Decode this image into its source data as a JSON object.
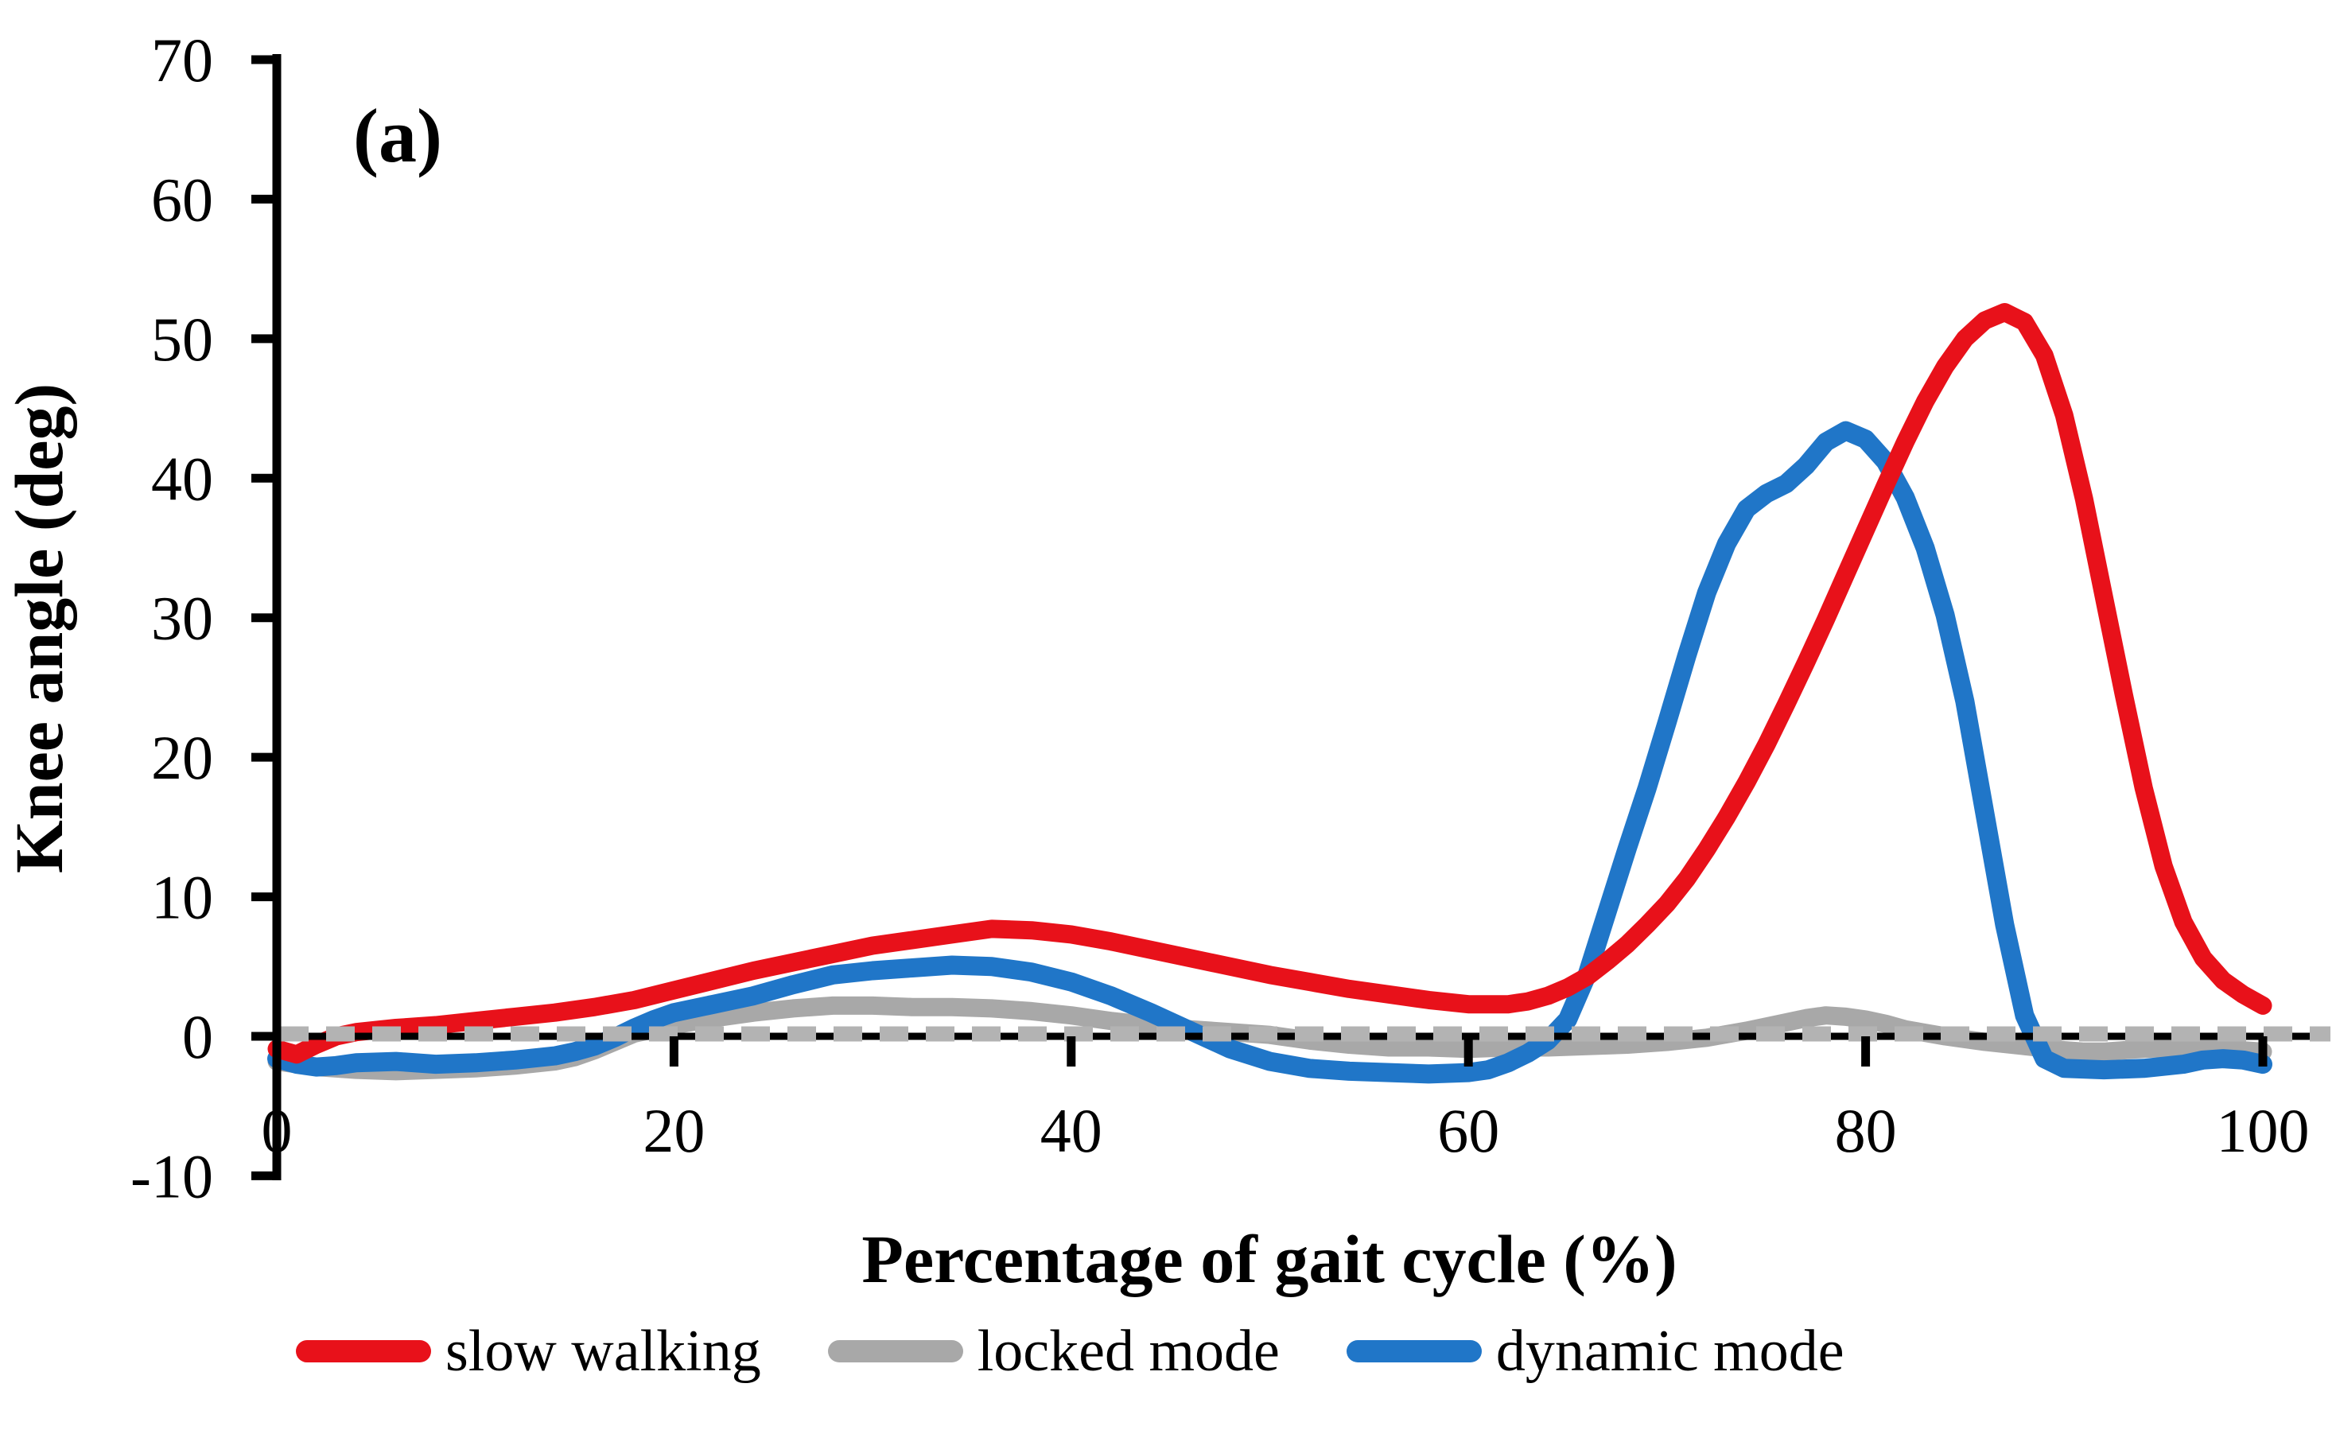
{
  "panel_label": "(a)",
  "y_axis": {
    "title": "Knee angle (deg)",
    "tick_values": [
      70,
      60,
      50,
      40,
      30,
      20,
      10,
      0,
      -10
    ],
    "min": -10,
    "max": 70
  },
  "x_axis": {
    "title": "Percentage of gait cycle (%)",
    "tick_values": [
      0,
      20,
      40,
      60,
      80,
      100
    ],
    "min": 0,
    "max": 100
  },
  "colors": {
    "slow_walking": "#e8111a",
    "locked_mode": "#a8a8a8",
    "dynamic_mode": "#2076c8",
    "zero_line": "#000000",
    "zero_dash": "#b3b3b3",
    "axis": "#000000"
  },
  "legend": [
    {
      "label": "slow walking",
      "color": "#e8111a"
    },
    {
      "label": "locked mode",
      "color": "#a8a8a8"
    },
    {
      "label": "dynamic mode",
      "color": "#2076c8"
    }
  ],
  "chart_data": {
    "type": "line",
    "title": "",
    "xlabel": "Percentage of gait cycle (%)",
    "ylabel": "Knee angle (deg)",
    "xlim": [
      0,
      100
    ],
    "ylim": [
      -10,
      70
    ],
    "x_ticks": [
      0,
      20,
      40,
      60,
      80,
      100
    ],
    "y_ticks": [
      -10,
      0,
      10,
      20,
      30,
      40,
      50,
      60,
      70
    ],
    "grid": false,
    "legend_position": "bottom",
    "zero_reference_line": true,
    "series": [
      {
        "name": "locked mode",
        "color": "#a8a8a8",
        "points": [
          [
            0,
            -1.8
          ],
          [
            2,
            -2.2
          ],
          [
            4,
            -2.4
          ],
          [
            6,
            -2.5
          ],
          [
            8,
            -2.4
          ],
          [
            10,
            -2.3
          ],
          [
            12,
            -2.1
          ],
          [
            14,
            -1.8
          ],
          [
            15,
            -1.5
          ],
          [
            16,
            -1.0
          ],
          [
            17,
            -0.4
          ],
          [
            18,
            0.2
          ],
          [
            19,
            0.5
          ],
          [
            20,
            0.8
          ],
          [
            22,
            1.3
          ],
          [
            24,
            1.7
          ],
          [
            26,
            2.0
          ],
          [
            28,
            2.2
          ],
          [
            30,
            2.2
          ],
          [
            32,
            2.1
          ],
          [
            34,
            2.1
          ],
          [
            36,
            2.0
          ],
          [
            38,
            1.8
          ],
          [
            40,
            1.5
          ],
          [
            42,
            1.1
          ],
          [
            44,
            0.8
          ],
          [
            46,
            0.5
          ],
          [
            48,
            0.3
          ],
          [
            50,
            0.1
          ],
          [
            52,
            -0.3
          ],
          [
            54,
            -0.6
          ],
          [
            56,
            -0.8
          ],
          [
            58,
            -0.8
          ],
          [
            60,
            -0.9
          ],
          [
            62,
            -0.8
          ],
          [
            64,
            -0.8
          ],
          [
            66,
            -0.7
          ],
          [
            68,
            -0.6
          ],
          [
            70,
            -0.4
          ],
          [
            72,
            -0.1
          ],
          [
            74,
            0.4
          ],
          [
            76,
            1.0
          ],
          [
            77,
            1.3
          ],
          [
            78,
            1.5
          ],
          [
            79,
            1.4
          ],
          [
            80,
            1.2
          ],
          [
            81,
            0.9
          ],
          [
            82,
            0.5
          ],
          [
            84,
            0.0
          ],
          [
            86,
            -0.4
          ],
          [
            88,
            -0.7
          ],
          [
            90,
            -1.0
          ],
          [
            91,
            -1.1
          ],
          [
            92,
            -1.1
          ],
          [
            93,
            -1.0
          ],
          [
            94,
            -0.9
          ],
          [
            96,
            -0.8
          ],
          [
            98,
            -0.9
          ],
          [
            100,
            -1.1
          ]
        ]
      },
      {
        "name": "dynamic mode",
        "color": "#2076c8",
        "points": [
          [
            0,
            -1.6
          ],
          [
            1,
            -2.0
          ],
          [
            2,
            -2.2
          ],
          [
            3,
            -2.1
          ],
          [
            4,
            -1.9
          ],
          [
            6,
            -1.8
          ],
          [
            8,
            -2.0
          ],
          [
            10,
            -1.9
          ],
          [
            12,
            -1.7
          ],
          [
            14,
            -1.4
          ],
          [
            15,
            -1.1
          ],
          [
            16,
            -0.7
          ],
          [
            17,
            -0.1
          ],
          [
            18,
            0.6
          ],
          [
            19,
            1.2
          ],
          [
            20,
            1.7
          ],
          [
            22,
            2.3
          ],
          [
            24,
            2.9
          ],
          [
            26,
            3.7
          ],
          [
            28,
            4.4
          ],
          [
            30,
            4.7
          ],
          [
            32,
            4.9
          ],
          [
            34,
            5.1
          ],
          [
            36,
            5.0
          ],
          [
            38,
            4.6
          ],
          [
            40,
            3.9
          ],
          [
            42,
            2.9
          ],
          [
            44,
            1.7
          ],
          [
            46,
            0.4
          ],
          [
            48,
            -0.9
          ],
          [
            50,
            -1.8
          ],
          [
            52,
            -2.3
          ],
          [
            54,
            -2.5
          ],
          [
            56,
            -2.6
          ],
          [
            58,
            -2.7
          ],
          [
            60,
            -2.6
          ],
          [
            61,
            -2.4
          ],
          [
            62,
            -1.9
          ],
          [
            63,
            -1.2
          ],
          [
            64,
            -0.3
          ],
          [
            65,
            1.2
          ],
          [
            66,
            4.5
          ],
          [
            67,
            9.0
          ],
          [
            68,
            13.5
          ],
          [
            69,
            17.8
          ],
          [
            70,
            22.5
          ],
          [
            71,
            27.3
          ],
          [
            72,
            31.8
          ],
          [
            73,
            35.3
          ],
          [
            74,
            37.8
          ],
          [
            75,
            38.9
          ],
          [
            76,
            39.6
          ],
          [
            77,
            40.9
          ],
          [
            78,
            42.6
          ],
          [
            79,
            43.4
          ],
          [
            80,
            42.8
          ],
          [
            81,
            41.2
          ],
          [
            82,
            38.6
          ],
          [
            83,
            35.0
          ],
          [
            84,
            30.2
          ],
          [
            85,
            24.0
          ],
          [
            86,
            16.0
          ],
          [
            87,
            8.0
          ],
          [
            88,
            1.5
          ],
          [
            89,
            -1.6
          ],
          [
            90,
            -2.3
          ],
          [
            92,
            -2.4
          ],
          [
            94,
            -2.3
          ],
          [
            96,
            -2.0
          ],
          [
            97,
            -1.7
          ],
          [
            98,
            -1.6
          ],
          [
            99,
            -1.7
          ],
          [
            100,
            -2.0
          ]
        ]
      },
      {
        "name": "slow walking",
        "color": "#e8111a",
        "points": [
          [
            0,
            -0.9
          ],
          [
            1,
            -1.3
          ],
          [
            2,
            -0.6
          ],
          [
            3,
            0.0
          ],
          [
            4,
            0.3
          ],
          [
            6,
            0.6
          ],
          [
            8,
            0.8
          ],
          [
            10,
            1.1
          ],
          [
            12,
            1.4
          ],
          [
            14,
            1.7
          ],
          [
            16,
            2.1
          ],
          [
            18,
            2.6
          ],
          [
            20,
            3.3
          ],
          [
            22,
            4.0
          ],
          [
            24,
            4.7
          ],
          [
            26,
            5.3
          ],
          [
            28,
            5.9
          ],
          [
            30,
            6.5
          ],
          [
            32,
            6.9
          ],
          [
            34,
            7.3
          ],
          [
            36,
            7.7
          ],
          [
            38,
            7.6
          ],
          [
            40,
            7.3
          ],
          [
            42,
            6.8
          ],
          [
            44,
            6.2
          ],
          [
            46,
            5.6
          ],
          [
            48,
            5.0
          ],
          [
            50,
            4.4
          ],
          [
            52,
            3.9
          ],
          [
            54,
            3.4
          ],
          [
            56,
            3.0
          ],
          [
            58,
            2.6
          ],
          [
            60,
            2.3
          ],
          [
            62,
            2.3
          ],
          [
            63,
            2.5
          ],
          [
            64,
            2.9
          ],
          [
            65,
            3.5
          ],
          [
            66,
            4.3
          ],
          [
            67,
            5.4
          ],
          [
            68,
            6.6
          ],
          [
            69,
            8.0
          ],
          [
            70,
            9.5
          ],
          [
            71,
            11.3
          ],
          [
            72,
            13.4
          ],
          [
            73,
            15.7
          ],
          [
            74,
            18.2
          ],
          [
            75,
            20.9
          ],
          [
            76,
            23.8
          ],
          [
            77,
            26.8
          ],
          [
            78,
            29.9
          ],
          [
            79,
            33.1
          ],
          [
            80,
            36.3
          ],
          [
            81,
            39.5
          ],
          [
            82,
            42.6
          ],
          [
            83,
            45.5
          ],
          [
            84,
            48.0
          ],
          [
            85,
            50.0
          ],
          [
            86,
            51.3
          ],
          [
            87,
            51.9
          ],
          [
            88,
            51.2
          ],
          [
            89,
            48.8
          ],
          [
            90,
            44.5
          ],
          [
            91,
            38.5
          ],
          [
            92,
            31.5
          ],
          [
            93,
            24.5
          ],
          [
            94,
            17.8
          ],
          [
            95,
            12.2
          ],
          [
            96,
            8.2
          ],
          [
            97,
            5.6
          ],
          [
            98,
            4.0
          ],
          [
            99,
            3.0
          ],
          [
            100,
            2.2
          ]
        ]
      }
    ]
  }
}
